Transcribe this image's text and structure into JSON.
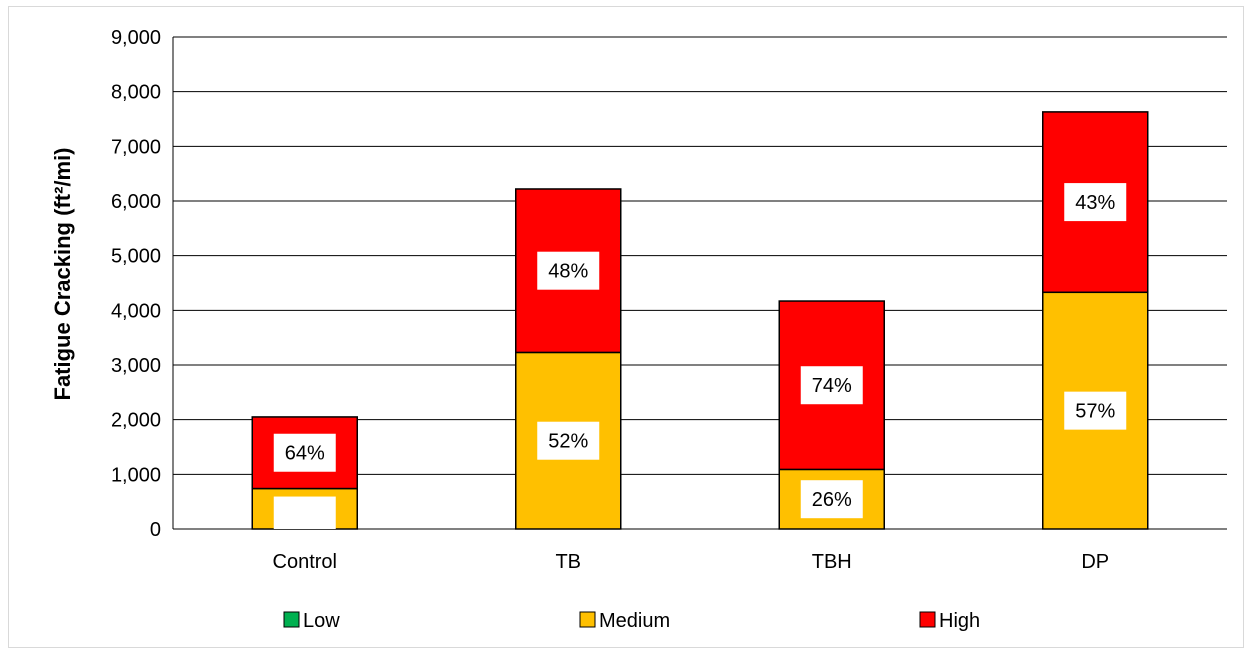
{
  "chart_data": {
    "type": "bar",
    "stacked": true,
    "title": "",
    "ylabel": "Fatigue Cracking (ft²/mi)",
    "xlabel": "",
    "ylim": [
      0,
      9000
    ],
    "yticks": [
      0,
      1000,
      2000,
      3000,
      4000,
      5000,
      6000,
      7000,
      8000,
      9000
    ],
    "ytick_labels": [
      "0",
      "1,000",
      "2,000",
      "3,000",
      "4,000",
      "5,000",
      "6,000",
      "7,000",
      "8,000",
      "9,000"
    ],
    "categories": [
      "Control",
      "TB",
      "TBH",
      "DP"
    ],
    "series": [
      {
        "name": "Low",
        "color": "#00B050",
        "values": [
          0,
          0,
          0,
          0
        ],
        "labels": [
          "",
          "",
          "",
          ""
        ]
      },
      {
        "name": "Medium",
        "color": "#FFC000",
        "values": [
          740,
          3230,
          1090,
          4330
        ],
        "labels": [
          "",
          "52%",
          "26%",
          "57%"
        ]
      },
      {
        "name": "High",
        "color": "#FF0000",
        "values": [
          1310,
          2990,
          3080,
          3300
        ],
        "labels": [
          "64%",
          "48%",
          "74%",
          "43%"
        ]
      }
    ],
    "legend_position": "bottom",
    "grid": true
  }
}
